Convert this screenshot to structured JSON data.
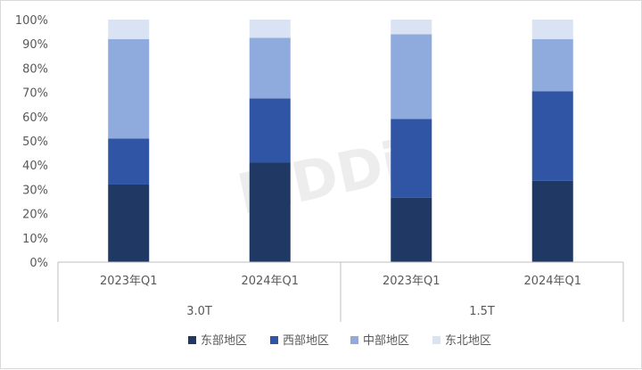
{
  "watermark": "MDDi",
  "chart_data": {
    "type": "bar",
    "stacked": true,
    "normalized": true,
    "categories": [
      "2023年Q1",
      "2024年Q1",
      "2023年Q1",
      "2024年Q1"
    ],
    "groups": [
      {
        "label": "3.0T",
        "categories": [
          0,
          1
        ]
      },
      {
        "label": "1.5T",
        "categories": [
          2,
          3
        ]
      }
    ],
    "series": [
      {
        "name": "东部地区",
        "color": "#1f3864",
        "values": [
          32,
          41,
          26.5,
          33.5
        ]
      },
      {
        "name": "西部地区",
        "color": "#2f55a4",
        "values": [
          19,
          26.5,
          32.5,
          37
        ]
      },
      {
        "name": "中部地区",
        "color": "#8faadc",
        "values": [
          41,
          25,
          35,
          21.5
        ]
      },
      {
        "name": "东北地区",
        "color": "#dae3f3",
        "values": [
          8,
          7.5,
          6,
          8
        ]
      }
    ],
    "yticks": [
      "0%",
      "10%",
      "20%",
      "30%",
      "40%",
      "50%",
      "60%",
      "70%",
      "80%",
      "90%",
      "100%"
    ],
    "ylim": [
      0,
      100
    ],
    "grid": false,
    "legend_position": "bottom"
  }
}
